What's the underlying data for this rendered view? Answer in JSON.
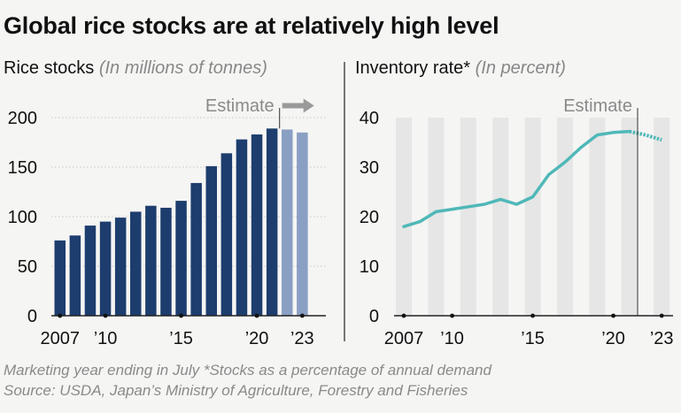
{
  "title": "Global rice stocks are at relatively high level",
  "left_panel": {
    "title": "Rice stocks",
    "subtitle": "(In millions of tonnes)"
  },
  "right_panel": {
    "title": "Inventory rate*",
    "subtitle": "(In percent)"
  },
  "footnotes": {
    "line1": "Marketing year ending in July  *Stocks as a percentage of annual demand",
    "line2": "Source: USDA, Japan’s Ministry of Agriculture, Forestry and Fisheries"
  },
  "colors": {
    "bar_actual": "#1d3d6e",
    "bar_estimate": "#8a9fc4",
    "line": "#4fb8b8",
    "stripe": "#e6e6e6",
    "estimate_arrow": "#9a9a9a"
  },
  "chart_data": [
    {
      "type": "bar",
      "title": "Rice stocks",
      "subtitle": "(In millions of tonnes)",
      "categories": [
        2007,
        2008,
        2009,
        2010,
        2011,
        2012,
        2013,
        2014,
        2015,
        2016,
        2017,
        2018,
        2019,
        2020,
        2021,
        2022,
        2023
      ],
      "values": [
        76,
        81,
        91,
        95,
        99,
        105,
        111,
        109,
        116,
        134,
        151,
        164,
        178,
        183,
        189,
        188,
        185
      ],
      "estimate_from": 2022,
      "estimate_label": "Estimate",
      "xtick_labels": [
        "2007",
        "’10",
        "’15",
        "’20",
        "’23"
      ],
      "xtick_years": [
        2007,
        2010,
        2015,
        2020,
        2023
      ],
      "ylim": [
        0,
        200
      ],
      "yticks": [
        0,
        50,
        100,
        150,
        200
      ],
      "grid": true
    },
    {
      "type": "line",
      "title": "Inventory rate*",
      "subtitle": "(In percent)",
      "x": [
        2007,
        2008,
        2009,
        2010,
        2011,
        2012,
        2013,
        2014,
        2015,
        2016,
        2017,
        2018,
        2019,
        2020,
        2021,
        2022,
        2023
      ],
      "values": [
        18,
        19,
        21,
        21.5,
        22,
        22.5,
        23.5,
        22.5,
        24,
        28.5,
        31,
        34,
        36.5,
        37,
        37.2,
        36.5,
        35.5
      ],
      "estimate_from": 2022,
      "estimate_label": "Estimate",
      "xtick_labels": [
        "2007",
        "’10",
        "’15",
        "’20",
        "’23"
      ],
      "xtick_years": [
        2007,
        2010,
        2015,
        2020,
        2023
      ],
      "ylim": [
        0,
        40
      ],
      "yticks": [
        0,
        10,
        20,
        30,
        40
      ],
      "grid": true
    }
  ]
}
